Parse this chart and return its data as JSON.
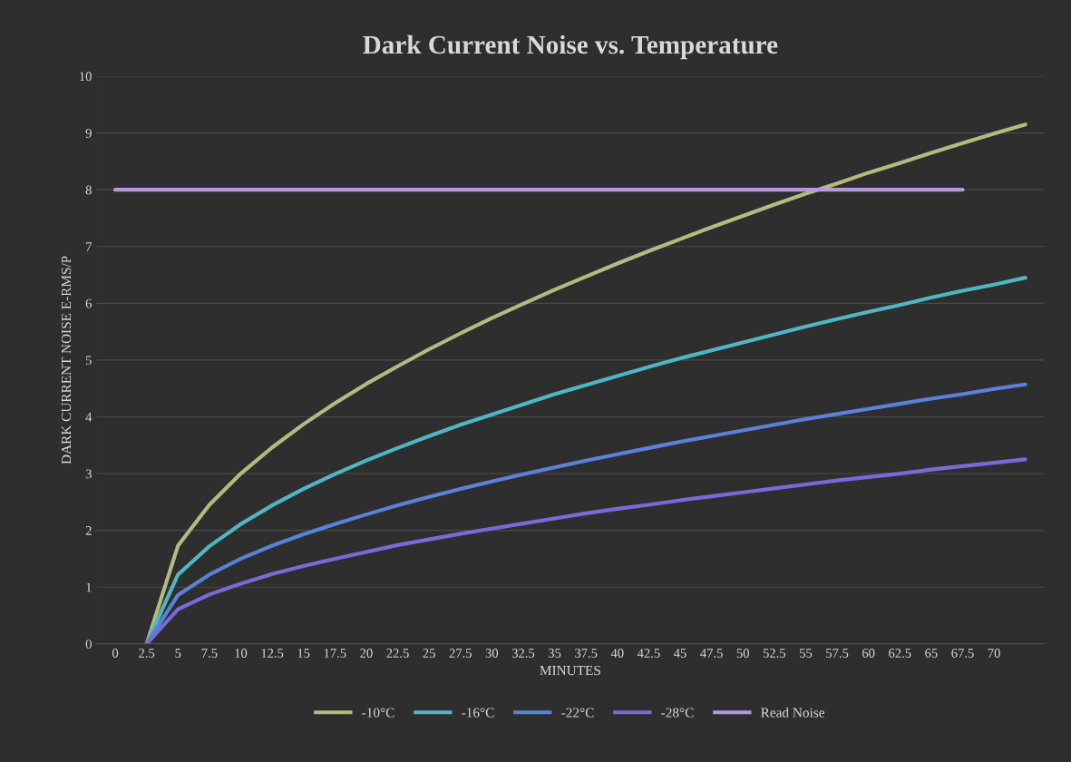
{
  "chart_data": {
    "type": "line",
    "title": "Dark Current Noise vs. Temperature",
    "xlabel": "MINUTES",
    "ylabel": "DARK CURRENT NOISE E-RMS/P",
    "xlim": [
      -1.5,
      74
    ],
    "xticks": [
      0,
      2.5,
      5,
      7.5,
      10,
      12.5,
      15,
      17.5,
      20,
      22.5,
      25,
      27.5,
      30,
      32.5,
      35,
      37.5,
      40,
      42.5,
      45,
      47.5,
      50,
      52.5,
      55,
      57.5,
      60,
      62.5,
      65,
      67.5,
      70
    ],
    "ylim": [
      0,
      10
    ],
    "yticks": [
      0,
      1,
      2,
      3,
      4,
      5,
      6,
      7,
      8,
      9,
      10
    ],
    "grid": "y",
    "legend": "bottom",
    "marker": "none",
    "line_style": "solid",
    "x": [
      2.5,
      5,
      7.5,
      10,
      12.5,
      15,
      17.5,
      20,
      22.5,
      25,
      27.5,
      30,
      32.5,
      35,
      37.5,
      40,
      42.5,
      45,
      47.5,
      50,
      52.5,
      55,
      57.5,
      60,
      62.5,
      65,
      67.5,
      70,
      72.5
    ],
    "series": [
      {
        "name": "-10°C",
        "color": "#b3bb80",
        "values": [
          0,
          1.73,
          2.45,
          3.0,
          3.46,
          3.87,
          4.24,
          4.58,
          4.89,
          5.19,
          5.47,
          5.74,
          5.99,
          6.24,
          6.47,
          6.7,
          6.92,
          7.13,
          7.34,
          7.54,
          7.74,
          7.93,
          8.11,
          8.3,
          8.47,
          8.65,
          8.82,
          8.99,
          9.15
        ]
      },
      {
        "name": "-16°C",
        "color": "#4fb6c4",
        "values": [
          0,
          1.22,
          1.72,
          2.11,
          2.44,
          2.73,
          2.99,
          3.23,
          3.45,
          3.66,
          3.86,
          4.04,
          4.22,
          4.4,
          4.56,
          4.72,
          4.88,
          5.03,
          5.17,
          5.31,
          5.45,
          5.59,
          5.72,
          5.85,
          5.97,
          6.1,
          6.22,
          6.33,
          6.45
        ]
      },
      {
        "name": "-22°C",
        "color": "#5a82d8",
        "values": [
          0,
          0.86,
          1.22,
          1.5,
          1.73,
          1.93,
          2.11,
          2.28,
          2.44,
          2.59,
          2.73,
          2.86,
          2.99,
          3.11,
          3.23,
          3.34,
          3.45,
          3.56,
          3.66,
          3.76,
          3.86,
          3.96,
          4.05,
          4.14,
          4.23,
          4.32,
          4.4,
          4.49,
          4.57
        ]
      },
      {
        "name": "-28°C",
        "color": "#7a6ad8",
        "values": [
          0,
          0.61,
          0.87,
          1.06,
          1.23,
          1.37,
          1.5,
          1.62,
          1.74,
          1.84,
          1.94,
          2.03,
          2.12,
          2.21,
          2.3,
          2.38,
          2.45,
          2.53,
          2.6,
          2.67,
          2.74,
          2.81,
          2.88,
          2.94,
          3.0,
          3.07,
          3.13,
          3.19,
          3.25
        ]
      },
      {
        "name": "Read Noise",
        "color": "#b59ad8",
        "x": [
          0,
          67.5
        ],
        "values": [
          8,
          8
        ]
      }
    ]
  }
}
